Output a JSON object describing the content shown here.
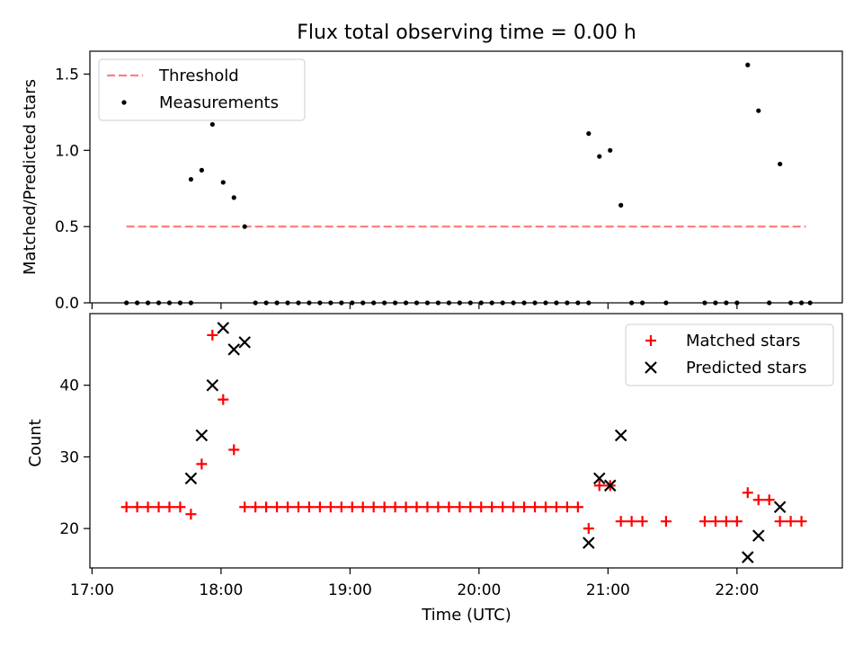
{
  "chart_data": {
    "title": "Flux total observing time = 0.00 h",
    "x_axis": {
      "label": "Time (UTC)",
      "unit": "minutes since 17:00 UTC",
      "range": [
        -1,
        349
      ],
      "ticks": [
        {
          "value": 0,
          "label": "17:00"
        },
        {
          "value": 60,
          "label": "18:00"
        },
        {
          "value": 120,
          "label": "19:00"
        },
        {
          "value": 180,
          "label": "20:00"
        },
        {
          "value": 240,
          "label": "21:00"
        },
        {
          "value": 300,
          "label": "22:00"
        }
      ]
    },
    "panels": [
      {
        "type": "scatter",
        "ylabel": "Matched/Predicted stars",
        "ylim": [
          0,
          1.65
        ],
        "yticks": [
          {
            "value": 0,
            "label": "0.0"
          },
          {
            "value": 0.5,
            "label": "0.5"
          },
          {
            "value": 1.0,
            "label": "1.0"
          },
          {
            "value": 1.5,
            "label": "1.5"
          }
        ],
        "legend_position": "top-left",
        "threshold": {
          "name": "Threshold",
          "value": 0.5,
          "x_range": [
            16,
            332
          ],
          "color": "#ff7f7f"
        },
        "series": [
          {
            "name": "Measurements",
            "marker": "dot",
            "color": "#000000",
            "points": [
              [
                16,
                0
              ],
              [
                21,
                0
              ],
              [
                26,
                0
              ],
              [
                31,
                0
              ],
              [
                36,
                0
              ],
              [
                41,
                0
              ],
              [
                46,
                0
              ],
              [
                46,
                0.81
              ],
              [
                51,
                0.87
              ],
              [
                56,
                1.17
              ],
              [
                61,
                0.79
              ],
              [
                66,
                0.69
              ],
              [
                71,
                0.5
              ],
              [
                76,
                0
              ],
              [
                81,
                0
              ],
              [
                86,
                0
              ],
              [
                91,
                0
              ],
              [
                96,
                0
              ],
              [
                101,
                0
              ],
              [
                106,
                0
              ],
              [
                111,
                0
              ],
              [
                116,
                0
              ],
              [
                121,
                0
              ],
              [
                126,
                0
              ],
              [
                131,
                0
              ],
              [
                136,
                0
              ],
              [
                141,
                0
              ],
              [
                146,
                0
              ],
              [
                151,
                0
              ],
              [
                156,
                0
              ],
              [
                161,
                0
              ],
              [
                166,
                0
              ],
              [
                171,
                0
              ],
              [
                176,
                0
              ],
              [
                181,
                0
              ],
              [
                186,
                0
              ],
              [
                191,
                0
              ],
              [
                196,
                0
              ],
              [
                201,
                0
              ],
              [
                206,
                0
              ],
              [
                211,
                0
              ],
              [
                216,
                0
              ],
              [
                221,
                0
              ],
              [
                226,
                0
              ],
              [
                231,
                0
              ],
              [
                231,
                1.11
              ],
              [
                236,
                0.96
              ],
              [
                241,
                1.0
              ],
              [
                246,
                0.64
              ],
              [
                251,
                0
              ],
              [
                256,
                0
              ],
              [
                267,
                0
              ],
              [
                285,
                0
              ],
              [
                290,
                0
              ],
              [
                295,
                0
              ],
              [
                300,
                0
              ],
              [
                305,
                1.56
              ],
              [
                310,
                1.26
              ],
              [
                315,
                0
              ],
              [
                320,
                0.91
              ],
              [
                325,
                0
              ],
              [
                330,
                0
              ],
              [
                334,
                0
              ]
            ]
          }
        ]
      },
      {
        "type": "scatter",
        "ylabel": "Count",
        "ylim": [
          14.5,
          50
        ],
        "yticks": [
          {
            "value": 20,
            "label": "20"
          },
          {
            "value": 30,
            "label": "30"
          },
          {
            "value": 40,
            "label": "40"
          }
        ],
        "legend_position": "top-right",
        "series": [
          {
            "name": "Matched stars",
            "marker": "plus",
            "color": "#ff0000",
            "points": [
              [
                16,
                23
              ],
              [
                21,
                23
              ],
              [
                26,
                23
              ],
              [
                31,
                23
              ],
              [
                36,
                23
              ],
              [
                41,
                23
              ],
              [
                46,
                22
              ],
              [
                51,
                29
              ],
              [
                56,
                47
              ],
              [
                61,
                38
              ],
              [
                66,
                31
              ],
              [
                71,
                23
              ],
              [
                76,
                23
              ],
              [
                81,
                23
              ],
              [
                86,
                23
              ],
              [
                91,
                23
              ],
              [
                96,
                23
              ],
              [
                101,
                23
              ],
              [
                106,
                23
              ],
              [
                111,
                23
              ],
              [
                116,
                23
              ],
              [
                121,
                23
              ],
              [
                126,
                23
              ],
              [
                131,
                23
              ],
              [
                136,
                23
              ],
              [
                141,
                23
              ],
              [
                146,
                23
              ],
              [
                151,
                23
              ],
              [
                156,
                23
              ],
              [
                161,
                23
              ],
              [
                166,
                23
              ],
              [
                171,
                23
              ],
              [
                176,
                23
              ],
              [
                181,
                23
              ],
              [
                186,
                23
              ],
              [
                191,
                23
              ],
              [
                196,
                23
              ],
              [
                201,
                23
              ],
              [
                206,
                23
              ],
              [
                211,
                23
              ],
              [
                216,
                23
              ],
              [
                221,
                23
              ],
              [
                226,
                23
              ],
              [
                231,
                20
              ],
              [
                236,
                26
              ],
              [
                241,
                26
              ],
              [
                246,
                21
              ],
              [
                251,
                21
              ],
              [
                256,
                21
              ],
              [
                267,
                21
              ],
              [
                285,
                21
              ],
              [
                290,
                21
              ],
              [
                295,
                21
              ],
              [
                300,
                21
              ],
              [
                305,
                25
              ],
              [
                310,
                24
              ],
              [
                315,
                24
              ],
              [
                320,
                21
              ],
              [
                325,
                21
              ],
              [
                330,
                21
              ]
            ]
          },
          {
            "name": "Predicted stars",
            "marker": "x",
            "color": "#000000",
            "points": [
              [
                46,
                27
              ],
              [
                51,
                33
              ],
              [
                56,
                40
              ],
              [
                61,
                48
              ],
              [
                66,
                45
              ],
              [
                71,
                46
              ],
              [
                231,
                18
              ],
              [
                236,
                27
              ],
              [
                241,
                26
              ],
              [
                246,
                33
              ],
              [
                305,
                16
              ],
              [
                310,
                19
              ],
              [
                320,
                23
              ]
            ]
          }
        ]
      }
    ]
  }
}
